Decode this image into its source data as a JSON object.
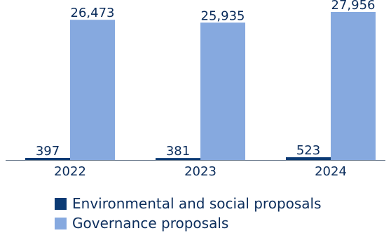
{
  "chart_data": {
    "type": "bar",
    "categories": [
      "2022",
      "2023",
      "2024"
    ],
    "series": [
      {
        "name": "Environmental and social proposals",
        "values": [
          397,
          381,
          523
        ],
        "labels": [
          "397",
          "381",
          "523"
        ],
        "color": "#0b3a74"
      },
      {
        "name": "Governance proposals",
        "values": [
          26473,
          25935,
          27956
        ],
        "labels": [
          "26,473",
          "25,935",
          "27,956"
        ],
        "color": "#86a9df"
      }
    ],
    "title": "",
    "xlabel": "",
    "ylabel": "",
    "ylim": [
      0,
      27956
    ],
    "grid": false,
    "legend": "bottom"
  }
}
